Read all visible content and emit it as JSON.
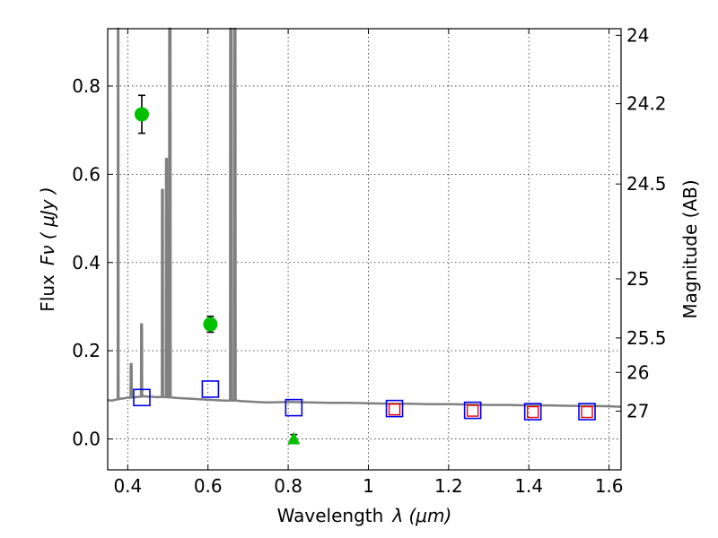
{
  "chart_data": {
    "type": "scatter",
    "xlabel_text": "Wavelength",
    "xlabel_var": "λ (μm)",
    "ylabel_text": "Flux",
    "ylabel_var": "Fν ( μJy )",
    "y2label": "Magnitude (AB)",
    "xlim": [
      0.35,
      1.63
    ],
    "ylim": [
      -0.07,
      0.93
    ],
    "grid": true,
    "x_ticks": [
      {
        "value": 0.4,
        "label": "0.4"
      },
      {
        "value": 0.6,
        "label": "0.6"
      },
      {
        "value": 0.8,
        "label": "0.8"
      },
      {
        "value": 1.0,
        "label": "1"
      },
      {
        "value": 1.2,
        "label": "1.2"
      },
      {
        "value": 1.4,
        "label": "1.4"
      },
      {
        "value": 1.6,
        "label": "1.6"
      }
    ],
    "y_ticks": [
      {
        "value": 0.0,
        "label": "0.0"
      },
      {
        "value": 0.2,
        "label": "0.2"
      },
      {
        "value": 0.4,
        "label": "0.4"
      },
      {
        "value": 0.6,
        "label": "0.6"
      },
      {
        "value": 0.8,
        "label": "0.8"
      }
    ],
    "mag_ticks": [
      {
        "flux": 0.915,
        "label": "24"
      },
      {
        "flux": 0.76,
        "label": "24.2"
      },
      {
        "flux": 0.578,
        "label": "24.5"
      },
      {
        "flux": 0.363,
        "label": "25"
      },
      {
        "flux": 0.229,
        "label": "25.5"
      },
      {
        "flux": 0.151,
        "label": "26"
      },
      {
        "flux": 0.063,
        "label": "27"
      }
    ],
    "model_spectrum": {
      "color": "#808080",
      "x": [
        0.35,
        0.36,
        0.37,
        0.375,
        0.3755,
        0.3765,
        0.377,
        0.378,
        0.38,
        0.39,
        0.4,
        0.407,
        0.4075,
        0.4095,
        0.41,
        0.42,
        0.43,
        0.433,
        0.4335,
        0.4355,
        0.436,
        0.44,
        0.45,
        0.46,
        0.47,
        0.48,
        0.485,
        0.4855,
        0.4875,
        0.488,
        0.49,
        0.495,
        0.4955,
        0.4975,
        0.498,
        0.5,
        0.503,
        0.5035,
        0.5065,
        0.507,
        0.51,
        0.52,
        0.54,
        0.56,
        0.58,
        0.6,
        0.62,
        0.64,
        0.65,
        0.655,
        0.6555,
        0.6585,
        0.659,
        0.665,
        0.6655,
        0.6685,
        0.669,
        0.672,
        0.68,
        0.7,
        0.72,
        0.74,
        0.76,
        0.8,
        0.85,
        0.9,
        0.95,
        1.0,
        1.05,
        1.1,
        1.15,
        1.2,
        1.25,
        1.3,
        1.35,
        1.4,
        1.45,
        1.5,
        1.55,
        1.6,
        1.63
      ],
      "y": [
        0.088,
        0.087,
        0.089,
        0.09,
        0.93,
        0.93,
        0.09,
        0.09,
        0.091,
        0.092,
        0.094,
        0.093,
        0.17,
        0.17,
        0.094,
        0.095,
        0.096,
        0.096,
        0.26,
        0.26,
        0.096,
        0.097,
        0.096,
        0.096,
        0.095,
        0.095,
        0.095,
        0.565,
        0.565,
        0.095,
        0.095,
        0.095,
        0.635,
        0.635,
        0.095,
        0.094,
        0.094,
        0.93,
        0.93,
        0.094,
        0.094,
        0.093,
        0.092,
        0.091,
        0.09,
        0.089,
        0.088,
        0.087,
        0.087,
        0.087,
        0.93,
        0.93,
        0.087,
        0.087,
        0.93,
        0.93,
        0.087,
        0.087,
        0.086,
        0.085,
        0.084,
        0.083,
        0.083,
        0.084,
        0.083,
        0.082,
        0.082,
        0.081,
        0.08,
        0.08,
        0.079,
        0.079,
        0.078,
        0.077,
        0.077,
        0.076,
        0.076,
        0.075,
        0.075,
        0.074,
        0.073
      ]
    },
    "observed_points": [
      {
        "x": 0.435,
        "y": 0.736,
        "yerr": 0.043,
        "marker": "circle",
        "color": "#00c000"
      },
      {
        "x": 0.606,
        "y": 0.26,
        "yerr": 0.018,
        "marker": "circle",
        "color": "#00c000"
      },
      {
        "x": 0.814,
        "y": 0.0,
        "yerr": 0.01,
        "marker": "triangle",
        "color": "#00c000"
      }
    ],
    "model_photometry_blue": {
      "color": "#0000ee",
      "x": [
        0.435,
        0.606,
        0.814,
        1.065,
        1.26,
        1.41,
        1.545
      ],
      "y": [
        0.094,
        0.113,
        0.071,
        0.069,
        0.065,
        0.062,
        0.062
      ]
    },
    "model_photometry_red": {
      "color": "#ee0000",
      "x": [
        1.065,
        1.26,
        1.41,
        1.545
      ],
      "y": [
        0.067,
        0.064,
        0.061,
        0.061
      ]
    }
  }
}
